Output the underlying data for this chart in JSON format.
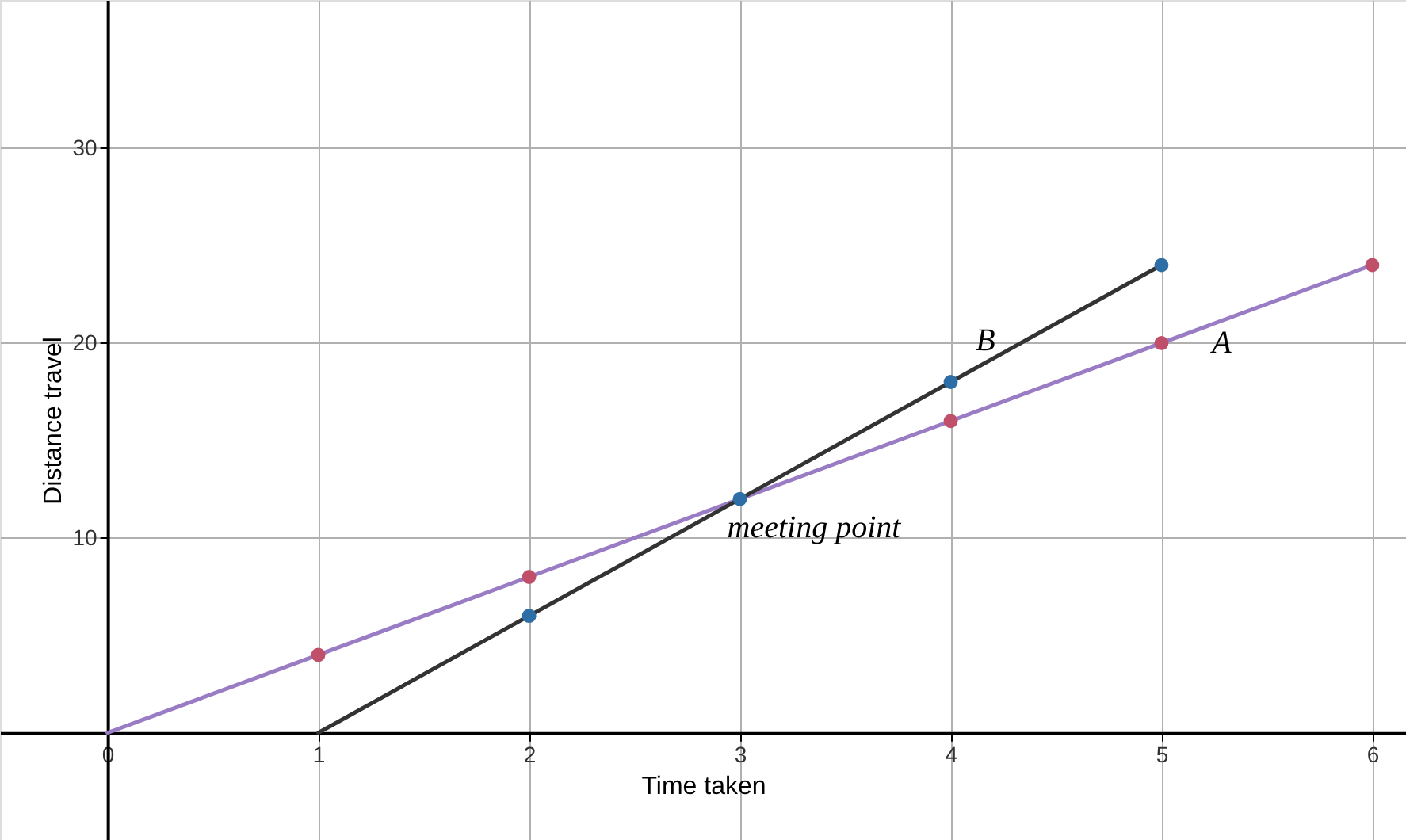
{
  "chart_data": {
    "type": "line",
    "xlabel": "Time taken",
    "ylabel": "Distance travel",
    "xlim": [
      -0.51,
      6.16
    ],
    "ylim": [
      -5.5,
      37.6
    ],
    "xticks": [
      0,
      1,
      2,
      3,
      4,
      5,
      6
    ],
    "yticks": [
      10,
      20,
      30
    ],
    "grid": true,
    "series": [
      {
        "name": "A",
        "color": "#9a7cc4",
        "marker": "none",
        "x": [
          0,
          1,
          2,
          3,
          4,
          5,
          6
        ],
        "values": [
          0,
          4,
          8,
          12,
          16,
          20,
          24
        ]
      },
      {
        "name": "B",
        "color": "#333333",
        "marker": "none",
        "x": [
          1,
          2,
          3,
          4,
          5
        ],
        "values": [
          0,
          6,
          12,
          18,
          24
        ]
      },
      {
        "type": "scatter",
        "color": "#c0506a",
        "marker": "circle",
        "x": [
          1,
          2,
          3,
          4,
          5,
          6
        ],
        "values": [
          4,
          8,
          null,
          16,
          20,
          24
        ]
      },
      {
        "type": "scatter",
        "color": "#2e6ea6",
        "marker": "circle",
        "x": [
          2,
          3,
          4,
          5
        ],
        "values": [
          6,
          12,
          18,
          24
        ]
      }
    ],
    "annotations": [
      {
        "text": "meeting point",
        "x": 3,
        "y": 12
      }
    ]
  }
}
